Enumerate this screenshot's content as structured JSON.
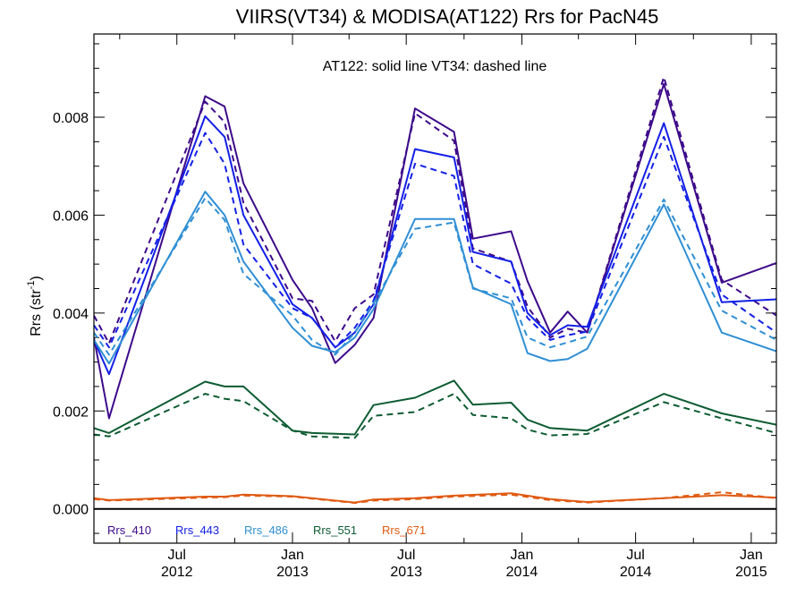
{
  "chart_data": {
    "type": "line",
    "title": "VIIRS(VT34) & MODISA(AT122)  Rrs for PacN45",
    "ylabel_main": "Rrs (str",
    "ylabel_sup": "-1",
    "ylabel_close": ")",
    "annotation": "AT122: solid line   VT34: dashed line",
    "xlim": [
      "2012-02-20",
      "2015-02-10"
    ],
    "ylim": [
      -0.0007,
      0.0097
    ],
    "y_ticks": [
      0.0,
      0.002,
      0.004,
      0.006,
      0.008
    ],
    "y_tick_labels": [
      "0.000",
      "0.002",
      "0.004",
      "0.006",
      "0.008"
    ],
    "x_major_ticks": [
      {
        "date": "2012-07-01",
        "line1": "Jul",
        "line2": "2012"
      },
      {
        "date": "2013-01-01",
        "line1": "Jan",
        "line2": "2013"
      },
      {
        "date": "2013-07-01",
        "line1": "Jul",
        "line2": "2013"
      },
      {
        "date": "2014-01-01",
        "line1": "Jan",
        "line2": "2014"
      },
      {
        "date": "2014-07-01",
        "line1": "Jul",
        "line2": "2014"
      },
      {
        "date": "2015-01-01",
        "line1": "Jan",
        "line2": "2015"
      }
    ],
    "x_minor_ticks": [
      "2012-04-01",
      "2012-10-01",
      "2013-04-01",
      "2013-10-01",
      "2014-04-01",
      "2014-10-01"
    ],
    "zero_line": true,
    "series": [
      {
        "name": "Rrs_410",
        "color": "#3d0a8a",
        "solid": [
          [
            "2012-02-20",
            0.0035
          ],
          [
            "2012-03-15",
            0.00185
          ],
          [
            "2012-08-15",
            0.00843
          ],
          [
            "2012-09-15",
            0.00822
          ],
          [
            "2012-10-15",
            0.00665
          ],
          [
            "2013-01-01",
            0.00468
          ],
          [
            "2013-02-01",
            0.0041
          ],
          [
            "2013-03-10",
            0.00298
          ],
          [
            "2013-04-10",
            0.00335
          ],
          [
            "2013-05-10",
            0.0039
          ],
          [
            "2013-07-15",
            0.00818
          ],
          [
            "2013-09-15",
            0.0077
          ],
          [
            "2013-10-15",
            0.00552
          ],
          [
            "2013-12-15",
            0.00567
          ],
          [
            "2014-01-10",
            0.00465
          ],
          [
            "2014-02-15",
            0.0036
          ],
          [
            "2014-03-15",
            0.00403
          ],
          [
            "2014-04-15",
            0.0036
          ],
          [
            "2014-08-15",
            0.00868
          ],
          [
            "2014-11-15",
            0.00462
          ],
          [
            "2015-02-10",
            0.00502
          ]
        ],
        "dashed": [
          [
            "2012-02-20",
            0.00395
          ],
          [
            "2012-03-15",
            0.00338
          ],
          [
            "2012-08-15",
            0.00832
          ],
          [
            "2012-09-15",
            0.0079
          ],
          [
            "2012-10-15",
            0.00625
          ],
          [
            "2013-01-01",
            0.0043
          ],
          [
            "2013-02-01",
            0.00425
          ],
          [
            "2013-03-10",
            0.00342
          ],
          [
            "2013-04-10",
            0.0041
          ],
          [
            "2013-05-10",
            0.00438
          ],
          [
            "2013-07-15",
            0.00808
          ],
          [
            "2013-09-15",
            0.00752
          ],
          [
            "2013-10-15",
            0.00532
          ],
          [
            "2013-12-15",
            0.00505
          ],
          [
            "2014-01-10",
            0.00413
          ],
          [
            "2014-02-15",
            0.0035
          ],
          [
            "2014-03-15",
            0.00368
          ],
          [
            "2014-04-15",
            0.0036
          ],
          [
            "2014-08-15",
            0.00882
          ],
          [
            "2014-11-15",
            0.00468
          ],
          [
            "2015-02-10",
            0.00395
          ]
        ]
      },
      {
        "name": "Rrs_443",
        "color": "#1420e6",
        "solid": [
          [
            "2012-02-20",
            0.00345
          ],
          [
            "2012-03-15",
            0.00275
          ],
          [
            "2012-08-15",
            0.00802
          ],
          [
            "2012-09-15",
            0.0076
          ],
          [
            "2012-10-15",
            0.006
          ],
          [
            "2013-01-01",
            0.00418
          ],
          [
            "2013-02-01",
            0.0039
          ],
          [
            "2013-03-10",
            0.0033
          ],
          [
            "2013-04-10",
            0.0036
          ],
          [
            "2013-05-10",
            0.00418
          ],
          [
            "2013-07-15",
            0.00735
          ],
          [
            "2013-09-15",
            0.00718
          ],
          [
            "2013-10-15",
            0.00525
          ],
          [
            "2013-12-15",
            0.00505
          ],
          [
            "2014-01-10",
            0.004
          ],
          [
            "2014-02-15",
            0.00355
          ],
          [
            "2014-03-15",
            0.00375
          ],
          [
            "2014-04-15",
            0.00372
          ],
          [
            "2014-08-15",
            0.00788
          ],
          [
            "2014-11-15",
            0.00422
          ],
          [
            "2015-02-10",
            0.00428
          ]
        ],
        "dashed": [
          [
            "2012-02-20",
            0.00375
          ],
          [
            "2012-03-15",
            0.0033
          ],
          [
            "2012-08-15",
            0.00768
          ],
          [
            "2012-09-15",
            0.00705
          ],
          [
            "2012-10-15",
            0.0054
          ],
          [
            "2013-01-01",
            0.0041
          ],
          [
            "2013-02-01",
            0.0039
          ],
          [
            "2013-03-10",
            0.0033
          ],
          [
            "2013-04-10",
            0.0037
          ],
          [
            "2013-05-10",
            0.00425
          ],
          [
            "2013-07-15",
            0.00705
          ],
          [
            "2013-09-15",
            0.0068
          ],
          [
            "2013-10-15",
            0.005
          ],
          [
            "2013-12-15",
            0.0046
          ],
          [
            "2014-01-10",
            0.0039
          ],
          [
            "2014-02-15",
            0.00345
          ],
          [
            "2014-03-15",
            0.00355
          ],
          [
            "2014-04-15",
            0.00362
          ],
          [
            "2014-08-15",
            0.0076
          ],
          [
            "2014-11-15",
            0.00438
          ],
          [
            "2015-02-10",
            0.0036
          ]
        ]
      },
      {
        "name": "Rrs_486",
        "color": "#2f8fd4",
        "solid": [
          [
            "2012-02-20",
            0.00345
          ],
          [
            "2012-03-15",
            0.00297
          ],
          [
            "2012-08-15",
            0.00648
          ],
          [
            "2012-09-15",
            0.006
          ],
          [
            "2012-10-15",
            0.00505
          ],
          [
            "2013-01-01",
            0.0037
          ],
          [
            "2013-02-01",
            0.00333
          ],
          [
            "2013-03-10",
            0.0032
          ],
          [
            "2013-04-10",
            0.0035
          ],
          [
            "2013-05-10",
            0.00408
          ],
          [
            "2013-07-15",
            0.00592
          ],
          [
            "2013-09-15",
            0.00592
          ],
          [
            "2013-10-15",
            0.00452
          ],
          [
            "2013-12-15",
            0.00418
          ],
          [
            "2014-01-10",
            0.00318
          ],
          [
            "2014-02-15",
            0.00302
          ],
          [
            "2014-03-15",
            0.00306
          ],
          [
            "2014-04-15",
            0.00327
          ],
          [
            "2014-08-15",
            0.00622
          ],
          [
            "2014-11-15",
            0.0036
          ],
          [
            "2015-02-10",
            0.00322
          ]
        ],
        "dashed": [
          [
            "2012-02-20",
            0.0036
          ],
          [
            "2012-03-15",
            0.00315
          ],
          [
            "2012-08-15",
            0.00635
          ],
          [
            "2012-09-15",
            0.0059
          ],
          [
            "2012-10-15",
            0.0048
          ],
          [
            "2013-01-01",
            0.00395
          ],
          [
            "2013-02-01",
            0.00345
          ],
          [
            "2013-03-10",
            0.00315
          ],
          [
            "2013-04-10",
            0.0036
          ],
          [
            "2013-05-10",
            0.0042
          ],
          [
            "2013-07-15",
            0.00572
          ],
          [
            "2013-09-15",
            0.00585
          ],
          [
            "2013-10-15",
            0.0045
          ],
          [
            "2013-12-15",
            0.0043
          ],
          [
            "2014-01-10",
            0.0035
          ],
          [
            "2014-02-15",
            0.0033
          ],
          [
            "2014-03-15",
            0.0034
          ],
          [
            "2014-04-15",
            0.00352
          ],
          [
            "2014-08-15",
            0.00632
          ],
          [
            "2014-11-15",
            0.00405
          ],
          [
            "2015-02-10",
            0.00345
          ]
        ]
      },
      {
        "name": "Rrs_551",
        "color": "#0d5c32",
        "solid": [
          [
            "2012-02-20",
            0.00165
          ],
          [
            "2012-03-15",
            0.00155
          ],
          [
            "2012-08-15",
            0.0026
          ],
          [
            "2012-09-15",
            0.0025
          ],
          [
            "2012-10-15",
            0.0025
          ],
          [
            "2013-01-01",
            0.0016
          ],
          [
            "2013-02-01",
            0.00155
          ],
          [
            "2013-04-10",
            0.00152
          ],
          [
            "2013-05-10",
            0.00212
          ],
          [
            "2013-07-15",
            0.00227
          ],
          [
            "2013-09-15",
            0.00262
          ],
          [
            "2013-10-15",
            0.00213
          ],
          [
            "2013-12-15",
            0.00217
          ],
          [
            "2014-01-10",
            0.00182
          ],
          [
            "2014-02-15",
            0.00165
          ],
          [
            "2014-04-15",
            0.0016
          ],
          [
            "2014-08-15",
            0.00235
          ],
          [
            "2014-11-15",
            0.00195
          ],
          [
            "2015-02-10",
            0.00172
          ]
        ],
        "dashed": [
          [
            "2012-02-20",
            0.00152
          ],
          [
            "2012-03-15",
            0.00148
          ],
          [
            "2012-08-15",
            0.00235
          ],
          [
            "2012-09-15",
            0.00225
          ],
          [
            "2012-10-15",
            0.0022
          ],
          [
            "2013-01-01",
            0.0016
          ],
          [
            "2013-02-01",
            0.00148
          ],
          [
            "2013-04-10",
            0.00145
          ],
          [
            "2013-05-10",
            0.0019
          ],
          [
            "2013-07-15",
            0.00198
          ],
          [
            "2013-09-15",
            0.00235
          ],
          [
            "2013-10-15",
            0.00192
          ],
          [
            "2013-12-15",
            0.00185
          ],
          [
            "2014-01-10",
            0.00162
          ],
          [
            "2014-02-15",
            0.0015
          ],
          [
            "2014-04-15",
            0.00153
          ],
          [
            "2014-08-15",
            0.00218
          ],
          [
            "2014-11-15",
            0.00185
          ],
          [
            "2015-02-10",
            0.00155
          ]
        ]
      },
      {
        "name": "Rrs_671",
        "color": "#e05a12",
        "solid": [
          [
            "2012-02-20",
            0.00022
          ],
          [
            "2012-03-15",
            0.00018
          ],
          [
            "2012-08-15",
            0.00025
          ],
          [
            "2012-09-15",
            0.00025
          ],
          [
            "2012-10-15",
            0.00029
          ],
          [
            "2013-01-01",
            0.00026
          ],
          [
            "2013-02-01",
            0.00022
          ],
          [
            "2013-04-10",
            0.00013
          ],
          [
            "2013-05-10",
            0.00019
          ],
          [
            "2013-07-15",
            0.00022
          ],
          [
            "2013-09-15",
            0.00027
          ],
          [
            "2013-12-15",
            0.00032
          ],
          [
            "2014-02-15",
            0.0002
          ],
          [
            "2014-04-15",
            0.00014
          ],
          [
            "2014-08-15",
            0.00022
          ],
          [
            "2014-11-15",
            0.00028
          ],
          [
            "2015-02-10",
            0.00023
          ]
        ],
        "dashed": [
          [
            "2012-02-20",
            0.0002
          ],
          [
            "2012-03-15",
            0.00017
          ],
          [
            "2012-08-15",
            0.00023
          ],
          [
            "2012-09-15",
            0.00024
          ],
          [
            "2012-10-15",
            0.00027
          ],
          [
            "2013-01-01",
            0.00025
          ],
          [
            "2013-02-01",
            0.00021
          ],
          [
            "2013-04-10",
            0.00012
          ],
          [
            "2013-05-10",
            0.00017
          ],
          [
            "2013-07-15",
            0.0002
          ],
          [
            "2013-09-15",
            0.00025
          ],
          [
            "2013-12-15",
            0.00029
          ],
          [
            "2014-02-15",
            0.00018
          ],
          [
            "2014-04-15",
            0.00013
          ],
          [
            "2014-08-15",
            0.00022
          ],
          [
            "2014-11-15",
            0.00034
          ],
          [
            "2015-02-10",
            0.00022
          ]
        ]
      }
    ]
  }
}
